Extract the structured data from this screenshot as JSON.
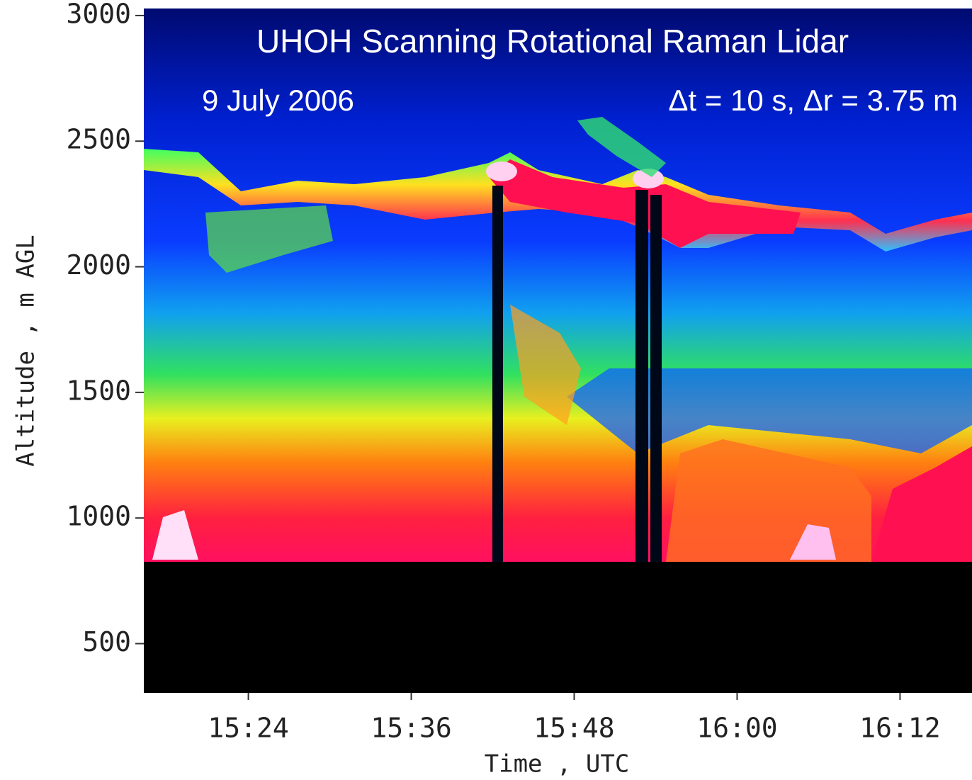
{
  "chart_data": {
    "type": "image",
    "title": "UHOH Scanning Rotational Raman Lidar",
    "subtitle": "9 July 2006",
    "annotation": "Δt = 10 s, Δr = 3.75 m",
    "xlabel": "Time , UTC",
    "ylabel": "Altitude , m AGL",
    "xlim": [
      916.3,
      977.3
    ],
    "xticks": [
      {
        "value": 924,
        "label": "15:24"
      },
      {
        "value": 936,
        "label": "15:36"
      },
      {
        "value": 948,
        "label": "15:48"
      },
      {
        "value": 960,
        "label": "16:00"
      },
      {
        "value": 972,
        "label": "16:12"
      }
    ],
    "ylim": [
      304,
      3028
    ],
    "yticks": [
      500,
      1000,
      1500,
      2000,
      2500,
      3000
    ]
  }
}
